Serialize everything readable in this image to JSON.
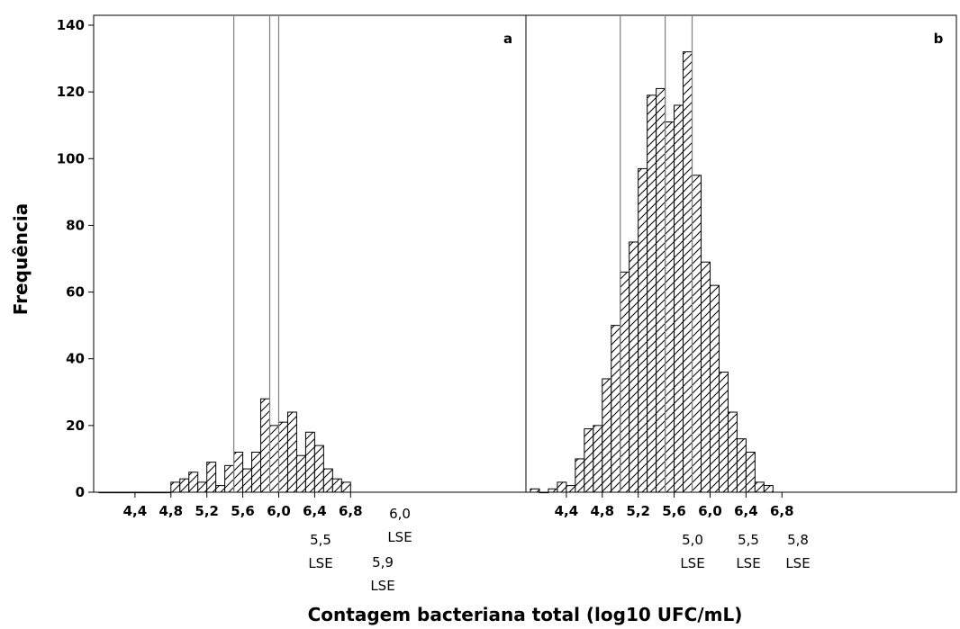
{
  "chart_data": {
    "type": "bar",
    "subtype": "histogram",
    "ylabel": "Frequência",
    "xlabel": "Contagem bacteriana total (log10 UFC/mL)",
    "ylim": [
      0,
      140
    ],
    "y_ticks": [
      0,
      20,
      40,
      60,
      80,
      100,
      120,
      140
    ],
    "fill_pattern": "diagonal-hatch",
    "bar_fill_color": "#ffffff",
    "bar_edge_color": "#000000",
    "reference_line_color": "#7f7f7f",
    "panels": [
      {
        "id": "a",
        "label": "a",
        "xlim": [
          4.0,
          6.9
        ],
        "x_ticks": [
          4.4,
          4.8,
          5.2,
          5.6,
          6.0,
          6.4,
          6.8
        ],
        "x_tick_labels": [
          "4,4",
          "4,8",
          "5,2",
          "5,6",
          "6,0",
          "6,4",
          "6,8"
        ],
        "bin_start": 4.0,
        "bin_width": 0.1,
        "values": [
          0,
          0,
          0,
          0,
          0,
          0,
          0,
          0,
          3,
          4,
          6,
          3,
          9,
          2,
          8,
          12,
          7,
          12,
          28,
          20,
          21,
          24,
          11,
          18,
          14,
          7,
          4,
          3
        ],
        "reference_lines": [
          {
            "x": 5.5,
            "label_lines": [
              "5,5",
              "LSE"
            ]
          },
          {
            "x": 5.9,
            "label_lines": [
              "5,9",
              "LSE"
            ]
          },
          {
            "x": 6.0,
            "label_lines": [
              "6,0",
              "LSE"
            ]
          }
        ]
      },
      {
        "id": "b",
        "label": "b",
        "xlim": [
          4.0,
          6.9
        ],
        "x_ticks": [
          4.4,
          4.8,
          5.2,
          5.6,
          6.0,
          6.4,
          6.8
        ],
        "x_tick_labels": [
          "4,4",
          "4,8",
          "5,2",
          "5,6",
          "6,0",
          "6,4",
          "6,8"
        ],
        "bin_start": 4.0,
        "bin_width": 0.1,
        "values": [
          1,
          0,
          1,
          3,
          2,
          10,
          19,
          20,
          34,
          50,
          66,
          75,
          97,
          119,
          121,
          111,
          116,
          132,
          95,
          69,
          62,
          36,
          24,
          16,
          12,
          3,
          2
        ],
        "reference_lines": [
          {
            "x": 5.0,
            "label_lines": [
              "5,0",
              "LSE"
            ]
          },
          {
            "x": 5.5,
            "label_lines": [
              "5,5",
              "LSE"
            ]
          },
          {
            "x": 5.8,
            "label_lines": [
              "5,8",
              "LSE"
            ]
          }
        ]
      }
    ]
  }
}
